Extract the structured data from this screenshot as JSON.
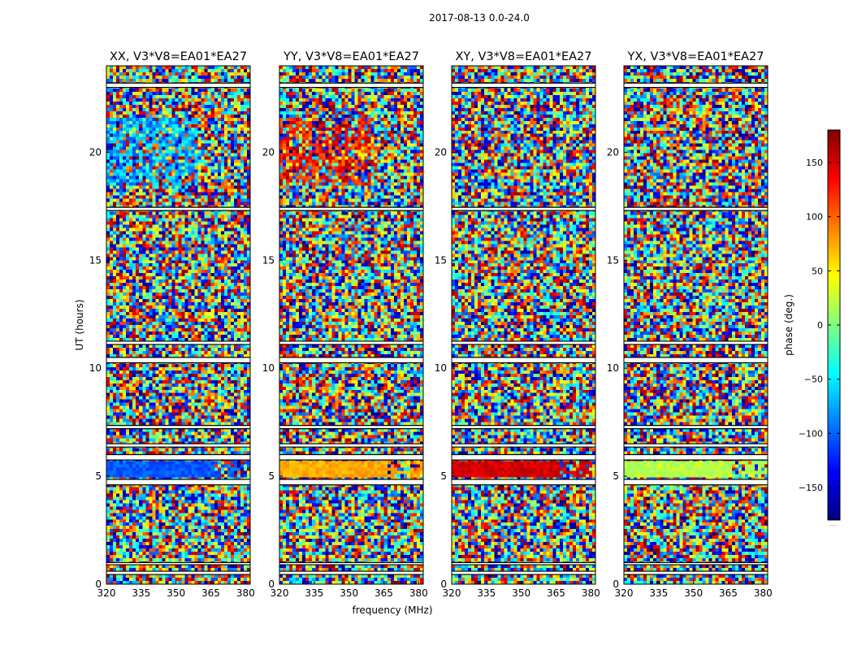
{
  "chart_data": {
    "type": "heatmap",
    "title": "2017-08-13 0.0-24.0",
    "xlabel": "frequency (MHz)",
    "ylabel": "UT (hours)",
    "xlim": [
      320,
      382
    ],
    "ylim": [
      0,
      24
    ],
    "xticks": [
      "320",
      "335",
      "350",
      "365",
      "380"
    ],
    "yticks": [
      "0",
      "5",
      "10",
      "15",
      "20"
    ],
    "colorbar": {
      "label": "phase (deg.)",
      "range": [
        -180,
        180
      ],
      "ticks": [
        "150",
        "100",
        "50",
        "0",
        "−50",
        "−100",
        "−150"
      ],
      "colormap": [
        "#00007f",
        "#0000ff",
        "#007fff",
        "#00ffff",
        "#7fff7f",
        "#ffff00",
        "#ff7f00",
        "#ff0000",
        "#7f0000"
      ],
      "footer": "....."
    },
    "flagged_bands_ut": [
      [
        0.45,
        0.6
      ],
      [
        0.9,
        1.0
      ],
      [
        4.6,
        4.85
      ],
      [
        5.75,
        6.0
      ],
      [
        6.35,
        6.5
      ],
      [
        7.2,
        7.35
      ],
      [
        10.25,
        10.5
      ],
      [
        11.1,
        11.25
      ],
      [
        17.3,
        17.45
      ],
      [
        23.0,
        23.2
      ]
    ],
    "panels": [
      {
        "title": "XX, V3*V8=EA01*EA27",
        "block_phase_deg": -105,
        "band_20ut_deg": -75
      },
      {
        "title": "YY, V3*V8=EA01*EA27",
        "block_phase_deg": 75,
        "band_20ut_deg": 130
      },
      {
        "title": "XY, V3*V8=EA01*EA27",
        "block_phase_deg": 150,
        "band_20ut_deg": 0
      },
      {
        "title": "YX, V3*V8=EA01*EA27",
        "block_phase_deg": 20,
        "band_20ut_deg": 0
      }
    ]
  }
}
